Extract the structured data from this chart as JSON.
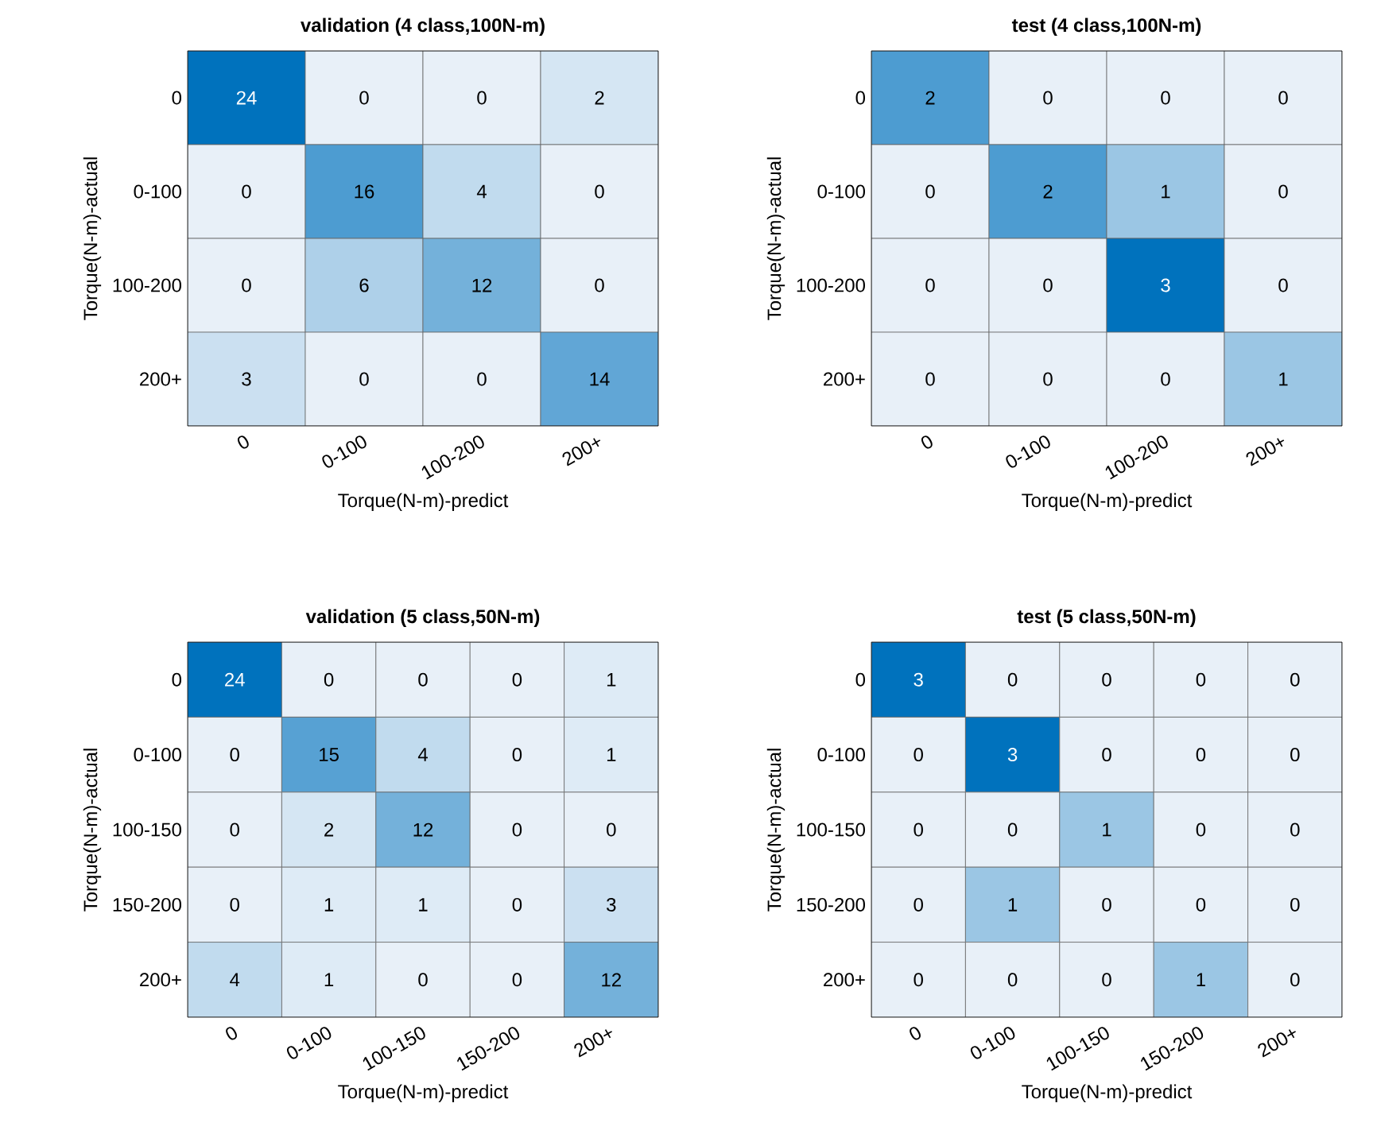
{
  "chart_data": [
    {
      "type": "heatmap",
      "title": "validation (4 class,100N-m)",
      "xlabel": "Torque(N-m)-predict",
      "ylabel": "Torque(N-m)-actual",
      "categories": [
        "0",
        "0-100",
        "100-200",
        "200+"
      ],
      "y_categories": [
        "0",
        "0-100",
        "100-200",
        "200+"
      ],
      "cells": [
        [
          24,
          0,
          0,
          2
        ],
        [
          0,
          16,
          4,
          0
        ],
        [
          0,
          6,
          12,
          0
        ],
        [
          3,
          0,
          0,
          14
        ]
      ],
      "data_labels": true
    },
    {
      "type": "heatmap",
      "title": "test (4 class,100N-m)",
      "xlabel": "Torque(N-m)-predict",
      "ylabel": "Torque(N-m)-actual",
      "categories": [
        "0",
        "0-100",
        "100-200",
        "200+"
      ],
      "y_categories": [
        "0",
        "0-100",
        "100-200",
        "200+"
      ],
      "cells": [
        [
          2,
          0,
          0,
          0
        ],
        [
          0,
          2,
          1,
          0
        ],
        [
          0,
          0,
          3,
          0
        ],
        [
          0,
          0,
          0,
          1
        ]
      ],
      "data_labels": true
    },
    {
      "type": "heatmap",
      "title": "validation (5 class,50N-m)",
      "xlabel": "Torque(N-m)-predict",
      "ylabel": "Torque(N-m)-actual",
      "categories": [
        "0",
        "0-100",
        "100-150",
        "150-200",
        "200+"
      ],
      "y_categories": [
        "0",
        "0-100",
        "100-150",
        "150-200",
        "200+"
      ],
      "cells": [
        [
          24,
          0,
          0,
          0,
          1
        ],
        [
          0,
          15,
          4,
          0,
          1
        ],
        [
          0,
          2,
          12,
          0,
          0
        ],
        [
          0,
          1,
          1,
          0,
          3
        ],
        [
          4,
          1,
          0,
          0,
          12
        ]
      ],
      "data_labels": true
    },
    {
      "type": "heatmap",
      "title": "test (5 class,50N-m)",
      "xlabel": "Torque(N-m)-predict",
      "ylabel": "Torque(N-m)-actual",
      "categories": [
        "0",
        "0-100",
        "100-150",
        "150-200",
        "200+"
      ],
      "y_categories": [
        "0",
        "0-100",
        "100-150",
        "150-200",
        "200+"
      ],
      "cells": [
        [
          3,
          0,
          0,
          0,
          0
        ],
        [
          0,
          3,
          0,
          0,
          0
        ],
        [
          0,
          0,
          1,
          0,
          0
        ],
        [
          0,
          1,
          0,
          0,
          0
        ],
        [
          0,
          0,
          0,
          1,
          0
        ]
      ],
      "data_labels": true
    }
  ]
}
